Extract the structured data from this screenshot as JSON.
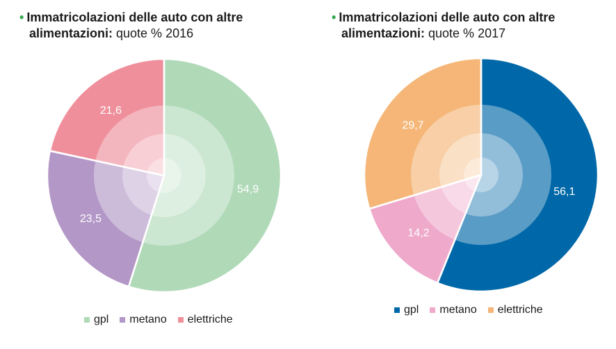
{
  "chart_data": [
    {
      "type": "pie",
      "title": "Immatricolazioni delle auto con altre",
      "title_line2_bold": "alimentazioni:",
      "title_line2_rest": " quote % 2016",
      "categories": [
        "gpl",
        "metano",
        "elettriche"
      ],
      "values": [
        54.9,
        23.5,
        21.6
      ],
      "labels": [
        "54,9",
        "23,5",
        "21,6"
      ],
      "colors": [
        "#b0d9b8",
        "#b397c6",
        "#ef8f9b"
      ],
      "label_color": "#ffffff",
      "legend": "bottom"
    },
    {
      "type": "pie",
      "title": "Immatricolazioni delle auto con altre",
      "title_line2_bold": "alimentazioni:",
      "title_line2_rest": " quote % 2017",
      "categories": [
        "gpl",
        "metano",
        "elettriche"
      ],
      "values": [
        56.1,
        14.2,
        29.7
      ],
      "labels": [
        "56,1",
        "14,2",
        "29,7"
      ],
      "colors": [
        "#0068a8",
        "#eea9cb",
        "#f5b677"
      ],
      "label_color": "#ffffff",
      "legend": "bottom"
    }
  ]
}
